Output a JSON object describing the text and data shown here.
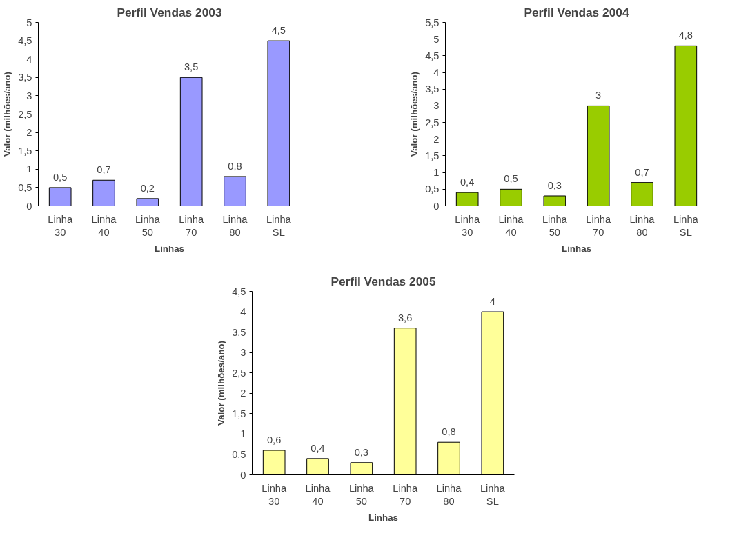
{
  "chart_data": [
    {
      "type": "bar",
      "title": "Perfil Vendas 2003",
      "xlabel": "Linhas",
      "ylabel": "Valor (milhões/ano)",
      "categories": [
        "Linha 30",
        "Linha 40",
        "Linha 50",
        "Linha 70",
        "Linha 80",
        "Linha SL"
      ],
      "values": [
        0.5,
        0.7,
        0.2,
        3.5,
        0.8,
        4.5
      ],
      "value_labels": [
        "0,5",
        "0,7",
        "0,2",
        "3,5",
        "0,8",
        "4,5"
      ],
      "color": "#9999ff",
      "ylim": [
        0,
        5
      ],
      "yticks": [
        0,
        {
          "value": 0.5,
          "label": "0,5"
        },
        1,
        {
          "value": 1.5,
          "label": "1,5"
        },
        2,
        {
          "value": 2.5,
          "label": "2,5"
        },
        3,
        {
          "value": 3.5,
          "label": "3,5"
        },
        4,
        {
          "value": 4.5,
          "label": "4,5"
        },
        5
      ],
      "grid": false
    },
    {
      "type": "bar",
      "title": "Perfil Vendas 2004",
      "xlabel": "Linhas",
      "ylabel": "Valor (milhões/ano)",
      "categories": [
        "Linha 30",
        "Linha 40",
        "Linha 50",
        "Linha 70",
        "Linha 80",
        "Linha SL"
      ],
      "values": [
        0.4,
        0.5,
        0.3,
        3,
        0.7,
        4.8
      ],
      "value_labels": [
        "0,4",
        "0,5",
        "0,3",
        "3",
        "0,7",
        "4,8"
      ],
      "color": "#99cc00",
      "ylim": [
        0,
        5.5
      ],
      "yticks": [
        0,
        {
          "value": 0.5,
          "label": "0,5"
        },
        1,
        {
          "value": 1.5,
          "label": "1,5"
        },
        2,
        {
          "value": 2.5,
          "label": "2,5"
        },
        3,
        {
          "value": 3.5,
          "label": "3,5"
        },
        4,
        {
          "value": 4.5,
          "label": "4,5"
        },
        5,
        {
          "value": 5.5,
          "label": "5,5"
        }
      ],
      "grid": false
    },
    {
      "type": "bar",
      "title": "Perfil Vendas 2005",
      "xlabel": "Linhas",
      "ylabel": "Valor (milhões/ano)",
      "categories": [
        "Linha 30",
        "Linha 40",
        "Linha 50",
        "Linha 70",
        "Linha 80",
        "Linha SL"
      ],
      "values": [
        0.6,
        0.4,
        0.3,
        3.6,
        0.8,
        4
      ],
      "value_labels": [
        "0,6",
        "0,4",
        "0,3",
        "3,6",
        "0,8",
        "4"
      ],
      "color": "#ffff99",
      "ylim": [
        0,
        4.5
      ],
      "yticks": [
        0,
        {
          "value": 0.5,
          "label": "0,5"
        },
        1,
        {
          "value": 1.5,
          "label": "1,5"
        },
        2,
        {
          "value": 2.5,
          "label": "2,5"
        },
        3,
        {
          "value": 3.5,
          "label": "3,5"
        },
        4,
        {
          "value": 4.5,
          "label": "4,5"
        }
      ],
      "grid": false
    }
  ]
}
